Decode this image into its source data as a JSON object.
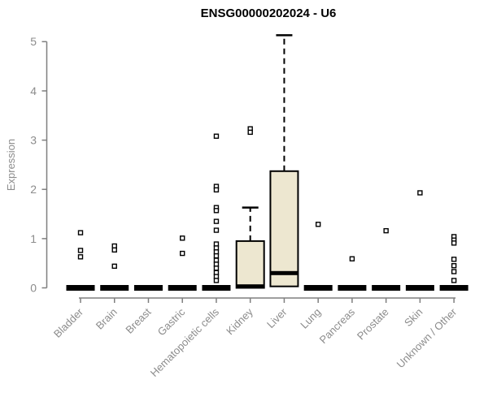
{
  "chart_data": {
    "type": "boxplot",
    "title": "ENSG00000202024 - U6",
    "xlabel": "",
    "ylabel": "Expression",
    "ylim": [
      0,
      5
    ],
    "yticks": [
      0,
      1,
      2,
      3,
      4,
      5
    ],
    "grid": false,
    "legend": "none",
    "colors": {
      "box_fill": "#EDE7D0",
      "box_stroke": "#000000",
      "median": "#000000",
      "outlier_stroke": "#000000",
      "axis": "#7F7F7F",
      "tick_label": "#8C8C8C",
      "title": "#000000",
      "background": "#FFFFFF"
    },
    "categories": [
      "Bladder",
      "Brain",
      "Breast",
      "Gastric",
      "Hematopoietic cells",
      "Kidney",
      "Liver",
      "Lung",
      "Pancreas",
      "Prostate",
      "Skin",
      "Unknown / Other"
    ],
    "boxes": [
      {
        "category": "Bladder",
        "q1": 0,
        "median": 0,
        "q3": 0,
        "whisker_low": 0,
        "whisker_high": 0,
        "outliers": [
          1.12,
          0.76,
          0.63
        ]
      },
      {
        "category": "Brain",
        "q1": 0,
        "median": 0,
        "q3": 0,
        "whisker_low": 0,
        "whisker_high": 0,
        "outliers": [
          0.85,
          0.77,
          0.44
        ]
      },
      {
        "category": "Breast",
        "q1": 0,
        "median": 0,
        "q3": 0,
        "whisker_low": 0,
        "whisker_high": 0,
        "outliers": []
      },
      {
        "category": "Gastric",
        "q1": 0,
        "median": 0,
        "q3": 0,
        "whisker_low": 0,
        "whisker_high": 0,
        "outliers": [
          1.01,
          0.7
        ]
      },
      {
        "category": "Hematopoietic cells",
        "q1": 0,
        "median": 0,
        "q3": 0,
        "whisker_low": 0,
        "whisker_high": 0,
        "outliers": [
          3.08,
          2.06,
          1.99,
          1.63,
          1.57,
          1.35,
          1.17,
          0.89,
          0.81,
          0.73,
          0.65,
          0.56,
          0.48,
          0.4,
          0.31,
          0.23,
          0.15
        ]
      },
      {
        "category": "Kidney",
        "q1": 0,
        "median": 0.03,
        "q3": 0.95,
        "whisker_low": 0,
        "whisker_high": 1.63,
        "outliers": [
          3.23,
          3.16
        ]
      },
      {
        "category": "Liver",
        "q1": 0.03,
        "median": 0.3,
        "q3": 2.37,
        "whisker_low": 0.03,
        "whisker_high": 5.13,
        "outliers": []
      },
      {
        "category": "Lung",
        "q1": 0,
        "median": 0,
        "q3": 0,
        "whisker_low": 0,
        "whisker_high": 0,
        "outliers": [
          1.29
        ]
      },
      {
        "category": "Pancreas",
        "q1": 0,
        "median": 0,
        "q3": 0,
        "whisker_low": 0,
        "whisker_high": 0,
        "outliers": [
          0.59
        ]
      },
      {
        "category": "Prostate",
        "q1": 0,
        "median": 0,
        "q3": 0,
        "whisker_low": 0,
        "whisker_high": 0,
        "outliers": [
          1.16
        ]
      },
      {
        "category": "Skin",
        "q1": 0,
        "median": 0,
        "q3": 0,
        "whisker_low": 0,
        "whisker_high": 0,
        "outliers": [
          1.93
        ]
      },
      {
        "category": "Unknown / Other",
        "q1": 0,
        "median": 0,
        "q3": 0,
        "whisker_low": 0,
        "whisker_high": 0,
        "outliers": [
          1.04,
          0.97,
          0.91,
          0.58,
          0.45,
          0.33,
          0.15
        ]
      }
    ]
  }
}
